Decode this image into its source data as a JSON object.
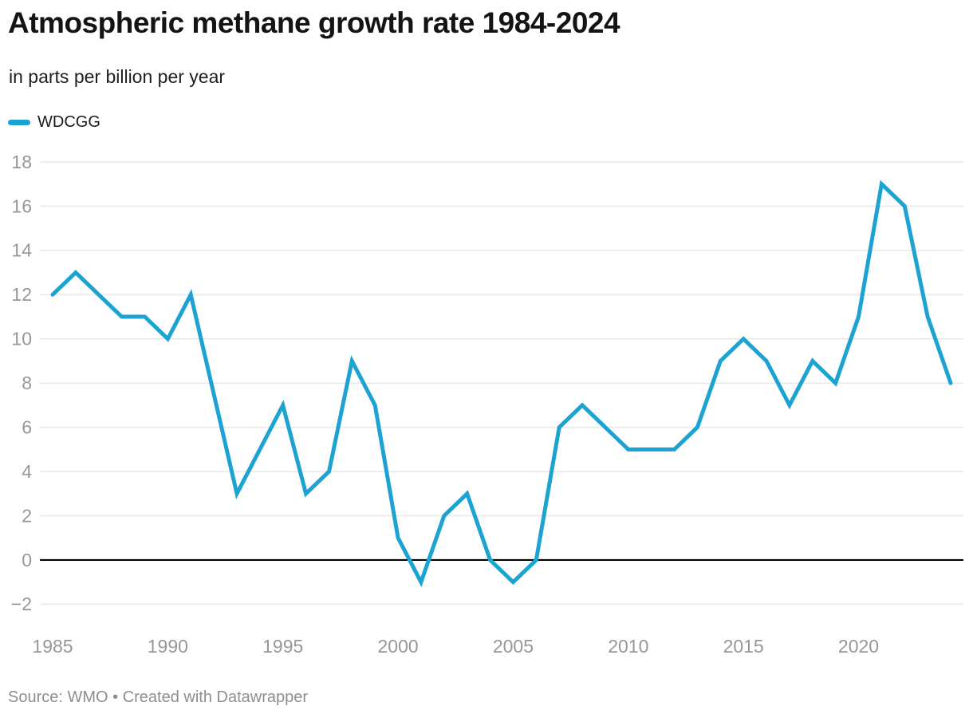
{
  "header": {
    "title": "Atmospheric methane growth rate 1984-2024",
    "subtitle": "in parts per billion per year"
  },
  "legend": {
    "series_label": "WDCGG",
    "swatch_color": "#1da3d2"
  },
  "footer": {
    "source": "Source: WMO • Created with Datawrapper"
  },
  "colors": {
    "line": "#1da3d2",
    "grid": "#e8e8e8",
    "zero_line": "#000000",
    "tick_label": "#979797",
    "title_text": "#141414",
    "source_text": "#8e8e8e"
  },
  "chart_data": {
    "type": "line",
    "title": "Atmospheric methane growth rate 1984-2024",
    "subtitle": "in parts per billion per year",
    "xlabel": "",
    "ylabel": "parts per billion per year",
    "grid": "horizontal",
    "zero_line": true,
    "legend_position": "top-left",
    "ylim": [
      -2,
      18
    ],
    "xlim": [
      1985,
      2024
    ],
    "y_ticks": [
      18,
      16,
      14,
      12,
      10,
      8,
      6,
      4,
      2,
      0,
      -2
    ],
    "x_ticks": [
      1985,
      1990,
      1995,
      2000,
      2005,
      2010,
      2015,
      2020
    ],
    "x": [
      1985,
      1986,
      1987,
      1988,
      1989,
      1990,
      1991,
      1992,
      1993,
      1994,
      1995,
      1996,
      1997,
      1998,
      1999,
      2000,
      2001,
      2002,
      2003,
      2004,
      2005,
      2006,
      2007,
      2008,
      2009,
      2010,
      2011,
      2012,
      2013,
      2014,
      2015,
      2016,
      2017,
      2018,
      2019,
      2020,
      2021,
      2022,
      2023,
      2024
    ],
    "series": [
      {
        "name": "WDCGG",
        "color": "#1da3d2",
        "values": [
          12,
          13,
          12,
          11,
          11,
          10,
          12,
          7.5,
          3,
          5,
          7,
          3,
          4,
          9,
          7,
          1,
          -1,
          2,
          3,
          0,
          -1,
          0,
          6,
          7,
          6,
          5,
          5,
          5,
          6,
          9,
          10,
          9,
          7,
          9,
          8,
          11,
          17,
          16,
          11,
          8
        ]
      }
    ]
  }
}
